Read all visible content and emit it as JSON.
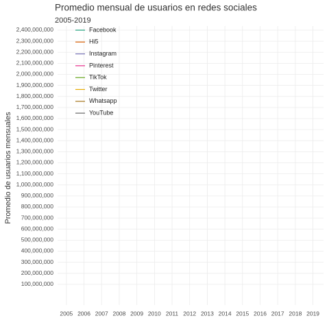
{
  "chart_data": {
    "type": "line",
    "title": "Promedio mensual de usuarios en redes sociales",
    "subtitle": "2005-2019",
    "y_label": "Promedio de usuarios mensuales",
    "x": [
      2005,
      2006,
      2007,
      2008,
      2009,
      2010,
      2011,
      2012,
      2013,
      2014,
      2015,
      2016,
      2017,
      2018,
      2019
    ],
    "series": [
      {
        "name": "Facebook",
        "color": "#1b9e77",
        "values": [
          null,
          null,
          null,
          null,
          null,
          null,
          null,
          null,
          null,
          null,
          null,
          null,
          null,
          null,
          null
        ]
      },
      {
        "name": "Hi5",
        "color": "#d95f02",
        "values": [
          null,
          null,
          null,
          null,
          null,
          null,
          null,
          null,
          null,
          null,
          null,
          null,
          null,
          null,
          null
        ]
      },
      {
        "name": "Instagram",
        "color": "#7570b3",
        "values": [
          null,
          null,
          null,
          null,
          null,
          null,
          null,
          null,
          null,
          null,
          null,
          null,
          null,
          null,
          null
        ]
      },
      {
        "name": "Pinterest",
        "color": "#e7298a",
        "values": [
          null,
          null,
          null,
          null,
          null,
          null,
          null,
          null,
          null,
          null,
          null,
          null,
          null,
          null,
          null
        ]
      },
      {
        "name": "TikTok",
        "color": "#66a61e",
        "values": [
          null,
          null,
          null,
          null,
          null,
          null,
          null,
          null,
          null,
          null,
          null,
          null,
          null,
          null,
          null
        ]
      },
      {
        "name": "Twitter",
        "color": "#e6ab02",
        "values": [
          null,
          null,
          null,
          null,
          null,
          null,
          null,
          null,
          null,
          null,
          null,
          null,
          null,
          null,
          null
        ]
      },
      {
        "name": "Whatsapp",
        "color": "#a6761d",
        "values": [
          null,
          null,
          null,
          null,
          null,
          null,
          null,
          null,
          null,
          null,
          null,
          null,
          null,
          null,
          null
        ]
      },
      {
        "name": "YouTube",
        "color": "#666666",
        "values": [
          null,
          null,
          null,
          null,
          null,
          null,
          null,
          null,
          null,
          null,
          null,
          null,
          null,
          null,
          null
        ]
      }
    ],
    "xlim": [
      2004.5,
      2019.6
    ],
    "xticks": [
      2005,
      2006,
      2007,
      2008,
      2009,
      2010,
      2011,
      2012,
      2013,
      2014,
      2015,
      2016,
      2017,
      2018,
      2019
    ],
    "ylim": [
      -87000000,
      2437000000
    ],
    "yticks": [
      {
        "value": 100000000,
        "label": "100,000,000"
      },
      {
        "value": 200000000,
        "label": "200,000,000"
      },
      {
        "value": 300000000,
        "label": "300,000,000"
      },
      {
        "value": 400000000,
        "label": "400,000,000"
      },
      {
        "value": 500000000,
        "label": "500,000,000"
      },
      {
        "value": 600000000,
        "label": "600,000,000"
      },
      {
        "value": 700000000,
        "label": "700,000,000"
      },
      {
        "value": 800000000,
        "label": "800,000,000"
      },
      {
        "value": 900000000,
        "label": "900,000,000"
      },
      {
        "value": 1000000000,
        "label": "1,000,000,000"
      },
      {
        "value": 1100000000,
        "label": "1,100,000,000"
      },
      {
        "value": 1200000000,
        "label": "1,200,000,000"
      },
      {
        "value": 1300000000,
        "label": "1,300,000,000"
      },
      {
        "value": 1400000000,
        "label": "1,400,000,000"
      },
      {
        "value": 1500000000,
        "label": "1,500,000,000"
      },
      {
        "value": 1600000000,
        "label": "1,600,000,000"
      },
      {
        "value": 1700000000,
        "label": "1,700,000,000"
      },
      {
        "value": 1800000000,
        "label": "1,800,000,000"
      },
      {
        "value": 1900000000,
        "label": "1,900,000,000"
      },
      {
        "value": 2000000000,
        "label": "2,000,000,000"
      },
      {
        "value": 2100000000,
        "label": "2,100,000,000"
      },
      {
        "value": 2200000000,
        "label": "2,200,000,000"
      },
      {
        "value": 2300000000,
        "label": "2,300,000,000"
      },
      {
        "value": 2400000000,
        "label": "2,400,000,000"
      }
    ],
    "grid": true,
    "legend": "top-left"
  }
}
